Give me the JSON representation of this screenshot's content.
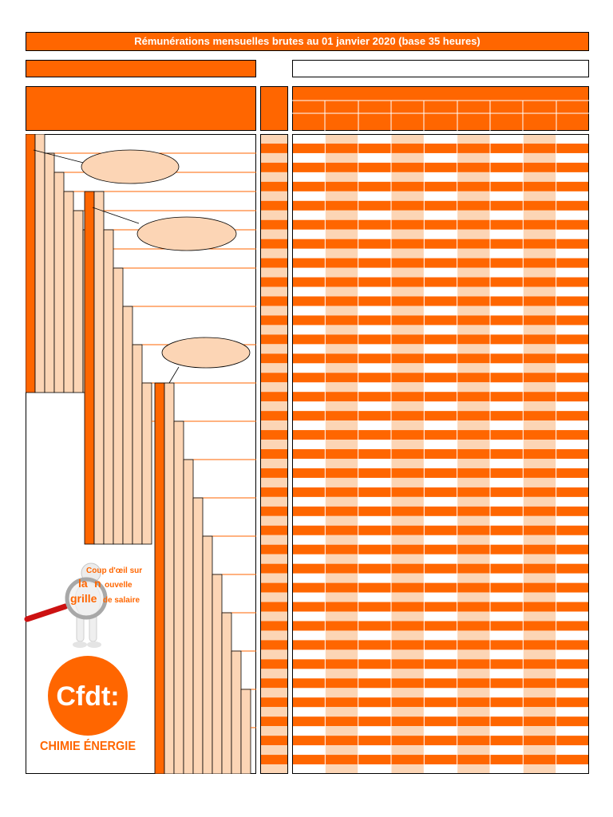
{
  "header": {
    "title": "Rémunérations mensuelles brutes au 01 janvier 2020 (base 35 heures)"
  },
  "promo": {
    "line1": "Coup d'œil sur",
    "line2a": "la",
    "line2b": "n",
    "line2c": "ouvelle",
    "line3a": "grille",
    "line3b": "de salaire"
  },
  "logo": {
    "mark": "Cfdt:",
    "name": "CHIMIE ÉNERGIE"
  },
  "colors": {
    "orange": "#ff6600",
    "peach": "#fcd5b5",
    "white": "#ffffff",
    "red": "#cc1111"
  },
  "icons": {
    "magnifier": "magnifier-icon",
    "mascot": "person-icon"
  }
}
